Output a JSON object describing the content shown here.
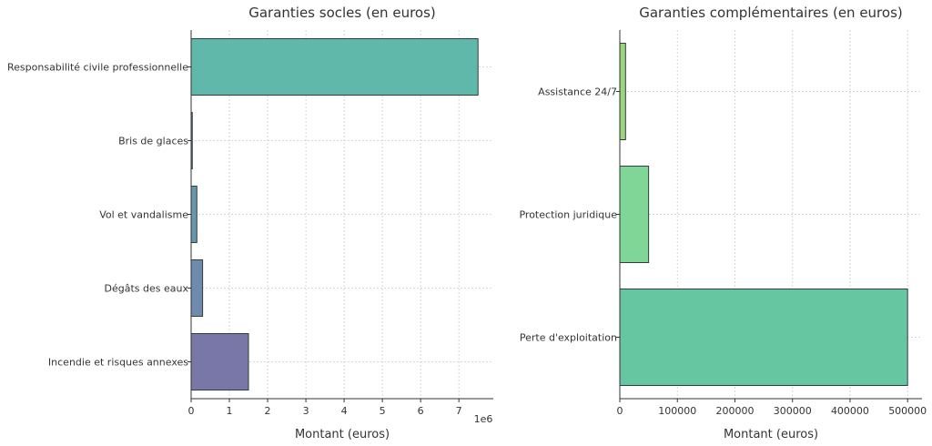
{
  "chart_data": [
    {
      "type": "bar",
      "orientation": "horizontal",
      "title": "Garanties socles (en euros)",
      "xlabel": "Montant (euros)",
      "ylabel": "",
      "x_offset_label": "1e6",
      "xlim": [
        0,
        7900000
      ],
      "xticks": [
        0,
        1,
        2,
        3,
        4,
        5,
        6,
        7
      ],
      "tick_scale": 1000000,
      "grid": true,
      "categories": [
        "Responsabilité civile professionnelle",
        "Bris de glaces",
        "Vol et vandalisme",
        "Dégâts des eaux",
        "Incendie et risques annexes"
      ],
      "values": [
        7500000,
        30000,
        150000,
        300000,
        1500000
      ],
      "colors": [
        "#5fb8aa",
        "#5b8f9b",
        "#6796ad",
        "#6e8bae",
        "#7877a8"
      ]
    },
    {
      "type": "bar",
      "orientation": "horizontal",
      "title": "Garanties complémentaires (en euros)",
      "xlabel": "Montant (euros)",
      "ylabel": "",
      "xlim": [
        0,
        525000
      ],
      "xticks": [
        0,
        100000,
        200000,
        300000,
        400000,
        500000
      ],
      "tick_scale": 1,
      "grid": true,
      "categories": [
        "Assistance 24/7",
        "Protection juridique",
        "Perte d'exploitation"
      ],
      "values": [
        10000,
        50000,
        500000
      ],
      "colors": [
        "#9bd47c",
        "#7fd696",
        "#66c6a2"
      ]
    }
  ]
}
